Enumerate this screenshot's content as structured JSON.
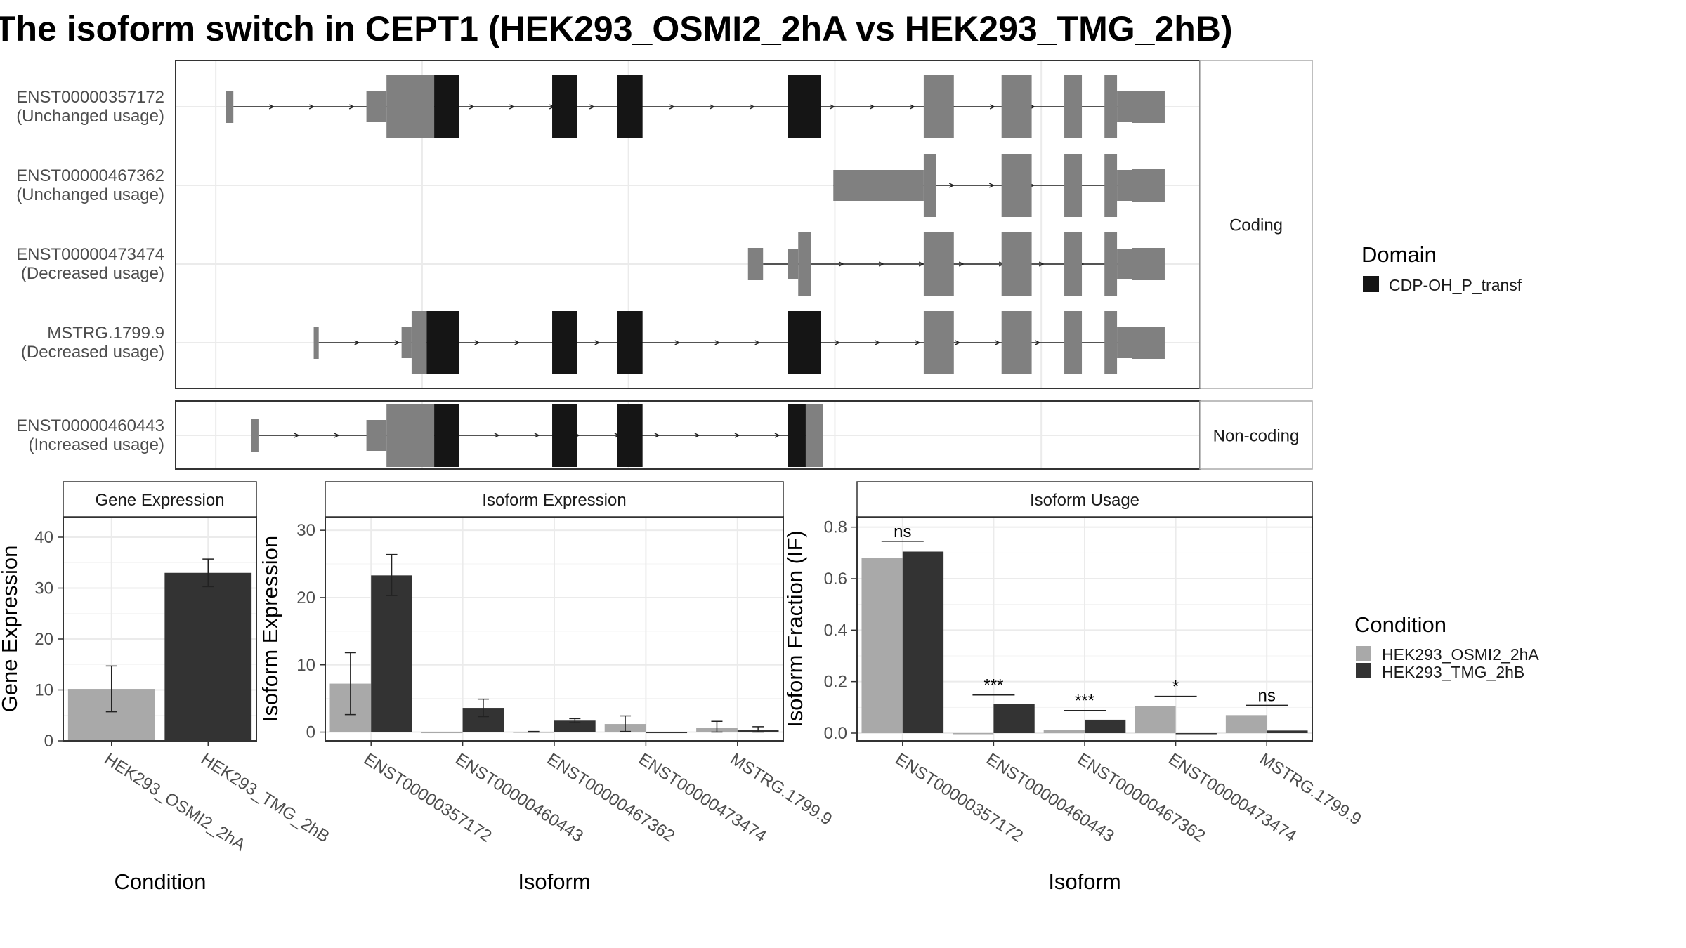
{
  "title": "The isoform switch in CEPT1 (HEK293_OSMI2_2hA vs HEK293_TMG_2hB)",
  "colors": {
    "cds": "#151515",
    "utr": "#808080",
    "cond_a": "#a9a9a9",
    "cond_b": "#333333",
    "grid": "#ebebeb",
    "panel_border": "#333333",
    "strip_border": "#aaaaaa"
  },
  "domain_legend": {
    "title": "Domain",
    "items": [
      {
        "label": "CDP-OH_P_transf",
        "color": "#151515"
      }
    ]
  },
  "condition_legend": {
    "title": "Condition",
    "items": [
      {
        "label": "HEK293_OSMI2_2hA",
        "color": "#a9a9a9"
      },
      {
        "label": "HEK293_TMG_2hB",
        "color": "#333333"
      }
    ]
  },
  "chart_data": [
    {
      "type": "gene-structure",
      "groups": [
        {
          "strip": "Coding",
          "tracks": [
            {
              "id": "ENST00000357172",
              "usage": "(Unchanged usage)",
              "features": [
                {
                  "kind": "utr",
                  "start": 2.0,
                  "end": 3.5
                },
                {
                  "kind": "utr-thin",
                  "start": 30,
                  "end": 34
                },
                {
                  "kind": "utr",
                  "start": 34,
                  "end": 43.5
                },
                {
                  "kind": "cds",
                  "start": 43.5,
                  "end": 48.5
                },
                {
                  "kind": "cds",
                  "start": 67,
                  "end": 72
                },
                {
                  "kind": "cds",
                  "start": 80,
                  "end": 85
                },
                {
                  "kind": "cds",
                  "start": 114,
                  "end": 120.5
                },
                {
                  "kind": "utr",
                  "start": 141,
                  "end": 147
                },
                {
                  "kind": "utr",
                  "start": 156.5,
                  "end": 162.5
                },
                {
                  "kind": "utr",
                  "start": 169,
                  "end": 172.5
                },
                {
                  "kind": "utr",
                  "start": 177,
                  "end": 179.5
                },
                {
                  "kind": "utr-thin",
                  "start": 179.5,
                  "end": 182.5
                },
                {
                  "kind": "utr",
                  "start": 182.5,
                  "end": 189
                }
              ],
              "intron": [
                3.5,
                182.5
              ]
            },
            {
              "id": "ENST00000467362",
              "usage": "(Unchanged usage)",
              "features": [
                {
                  "kind": "utr-thin",
                  "start": 123,
                  "end": 141
                },
                {
                  "kind": "utr",
                  "start": 141,
                  "end": 143.5
                },
                {
                  "kind": "utr",
                  "start": 156.5,
                  "end": 162.5
                },
                {
                  "kind": "utr",
                  "start": 169,
                  "end": 172.5
                },
                {
                  "kind": "utr",
                  "start": 177,
                  "end": 179.5
                },
                {
                  "kind": "utr-thin",
                  "start": 179.5,
                  "end": 182.5
                },
                {
                  "kind": "utr",
                  "start": 182.5,
                  "end": 189
                }
              ],
              "intron": [
                123,
                182.5
              ]
            },
            {
              "id": "ENST00000473474",
              "usage": "(Decreased usage)",
              "features": [
                {
                  "kind": "utr",
                  "start": 106,
                  "end": 109
                },
                {
                  "kind": "utr-thin",
                  "start": 114,
                  "end": 116
                },
                {
                  "kind": "utr",
                  "start": 116,
                  "end": 118.5
                },
                {
                  "kind": "utr",
                  "start": 141,
                  "end": 147
                },
                {
                  "kind": "utr",
                  "start": 156.5,
                  "end": 162.5
                },
                {
                  "kind": "utr",
                  "start": 169,
                  "end": 172.5
                },
                {
                  "kind": "utr",
                  "start": 177,
                  "end": 179.5
                },
                {
                  "kind": "utr-thin",
                  "start": 179.5,
                  "end": 182.5
                },
                {
                  "kind": "utr",
                  "start": 182.5,
                  "end": 189
                }
              ],
              "intron": [
                109,
                182.5
              ]
            },
            {
              "id": "MSTRG.1799.9",
              "usage": "(Decreased usage)",
              "features": [
                {
                  "kind": "utr",
                  "start": 19.5,
                  "end": 20.5
                },
                {
                  "kind": "utr-thin",
                  "start": 37,
                  "end": 39
                },
                {
                  "kind": "utr",
                  "start": 39,
                  "end": 42
                },
                {
                  "kind": "cds",
                  "start": 42,
                  "end": 48.5
                },
                {
                  "kind": "cds",
                  "start": 67,
                  "end": 72
                },
                {
                  "kind": "cds",
                  "start": 80,
                  "end": 85
                },
                {
                  "kind": "cds",
                  "start": 114,
                  "end": 120.5
                },
                {
                  "kind": "utr",
                  "start": 141,
                  "end": 147
                },
                {
                  "kind": "utr",
                  "start": 156.5,
                  "end": 162.5
                },
                {
                  "kind": "utr",
                  "start": 169,
                  "end": 172.5
                },
                {
                  "kind": "utr",
                  "start": 177,
                  "end": 179.5
                },
                {
                  "kind": "utr-thin",
                  "start": 179.5,
                  "end": 182.5
                },
                {
                  "kind": "utr",
                  "start": 182.5,
                  "end": 189
                }
              ],
              "intron": [
                20.5,
                182.5
              ]
            }
          ]
        },
        {
          "strip": "Non-coding",
          "tracks": [
            {
              "id": "ENST00000460443",
              "usage": "(Increased usage)",
              "features": [
                {
                  "kind": "utr",
                  "start": 7,
                  "end": 8.5
                },
                {
                  "kind": "utr-thin",
                  "start": 30,
                  "end": 34
                },
                {
                  "kind": "utr",
                  "start": 34,
                  "end": 43.5
                },
                {
                  "kind": "cds",
                  "start": 43.5,
                  "end": 48.5
                },
                {
                  "kind": "cds",
                  "start": 67,
                  "end": 72
                },
                {
                  "kind": "cds",
                  "start": 80,
                  "end": 85
                },
                {
                  "kind": "cds",
                  "start": 114,
                  "end": 117.5
                },
                {
                  "kind": "utr",
                  "start": 117.5,
                  "end": 121
                }
              ],
              "intron": [
                8.5,
                117.5
              ]
            }
          ]
        }
      ]
    },
    {
      "type": "bar",
      "strip": "Gene Expression",
      "xlabel": "Condition",
      "ylabel": "Gene Expression",
      "ylim": [
        0,
        44
      ],
      "yticks": [
        0,
        10,
        20,
        30,
        40
      ],
      "categories": [
        "HEK293_OSMI2_2hA",
        "HEK293_TMG_2hB"
      ],
      "values": [
        10.2,
        33.0
      ],
      "errors": [
        [
          5.7,
          14.7
        ],
        [
          30.3,
          35.7
        ]
      ],
      "grid": true
    },
    {
      "type": "bar",
      "strip": "Isoform Expression",
      "xlabel": "Isoform",
      "ylabel": "Isoform Expression",
      "ylim": [
        -1.3,
        32
      ],
      "yticks": [
        0,
        10,
        20,
        30
      ],
      "categories": [
        "ENST00000357172",
        "ENST00000460443",
        "ENST00000467362",
        "ENST00000473474",
        "MSTRG.1799.9"
      ],
      "series": [
        {
          "name": "HEK293_OSMI2_2hA",
          "values": [
            7.2,
            0.0,
            0.05,
            1.2,
            0.6
          ],
          "errors": [
            [
              2.6,
              11.8
            ],
            [
              0.0,
              0.0
            ],
            [
              0.0,
              0.1
            ],
            [
              0.1,
              2.4
            ],
            [
              0.0,
              1.6
            ]
          ]
        },
        {
          "name": "HEK293_TMG_2hB",
          "values": [
            23.3,
            3.6,
            1.7,
            0.0,
            0.3
          ],
          "errors": [
            [
              20.3,
              26.4
            ],
            [
              2.3,
              4.9
            ],
            [
              1.4,
              2.0
            ],
            [
              0.0,
              0.0
            ],
            [
              0.0,
              0.8
            ]
          ]
        }
      ],
      "grid": true
    },
    {
      "type": "bar",
      "strip": "Isoform Usage",
      "xlabel": "Isoform",
      "ylabel": "Isoform Fraction (IF)",
      "ylim": [
        -0.03,
        0.84
      ],
      "yticks": [
        0.0,
        0.2,
        0.4,
        0.6,
        0.8
      ],
      "ytick_labels": [
        "0.0",
        "0.2",
        "0.4",
        "0.6",
        "0.8"
      ],
      "categories": [
        "ENST00000357172",
        "ENST00000460443",
        "ENST00000467362",
        "ENST00000473474",
        "MSTRG.1799.9"
      ],
      "series": [
        {
          "name": "HEK293_OSMI2_2hA",
          "values": [
            0.68,
            0.0,
            0.012,
            0.105,
            0.07
          ]
        },
        {
          "name": "HEK293_TMG_2hB",
          "values": [
            0.705,
            0.113,
            0.052,
            0.0,
            0.01
          ]
        }
      ],
      "significance": [
        {
          "label": "ns",
          "y": 0.745
        },
        {
          "label": "***",
          "y": 0.148
        },
        {
          "label": "***",
          "y": 0.088
        },
        {
          "label": "*",
          "y": 0.143
        },
        {
          "label": "ns",
          "y": 0.108
        }
      ],
      "grid": true
    }
  ]
}
